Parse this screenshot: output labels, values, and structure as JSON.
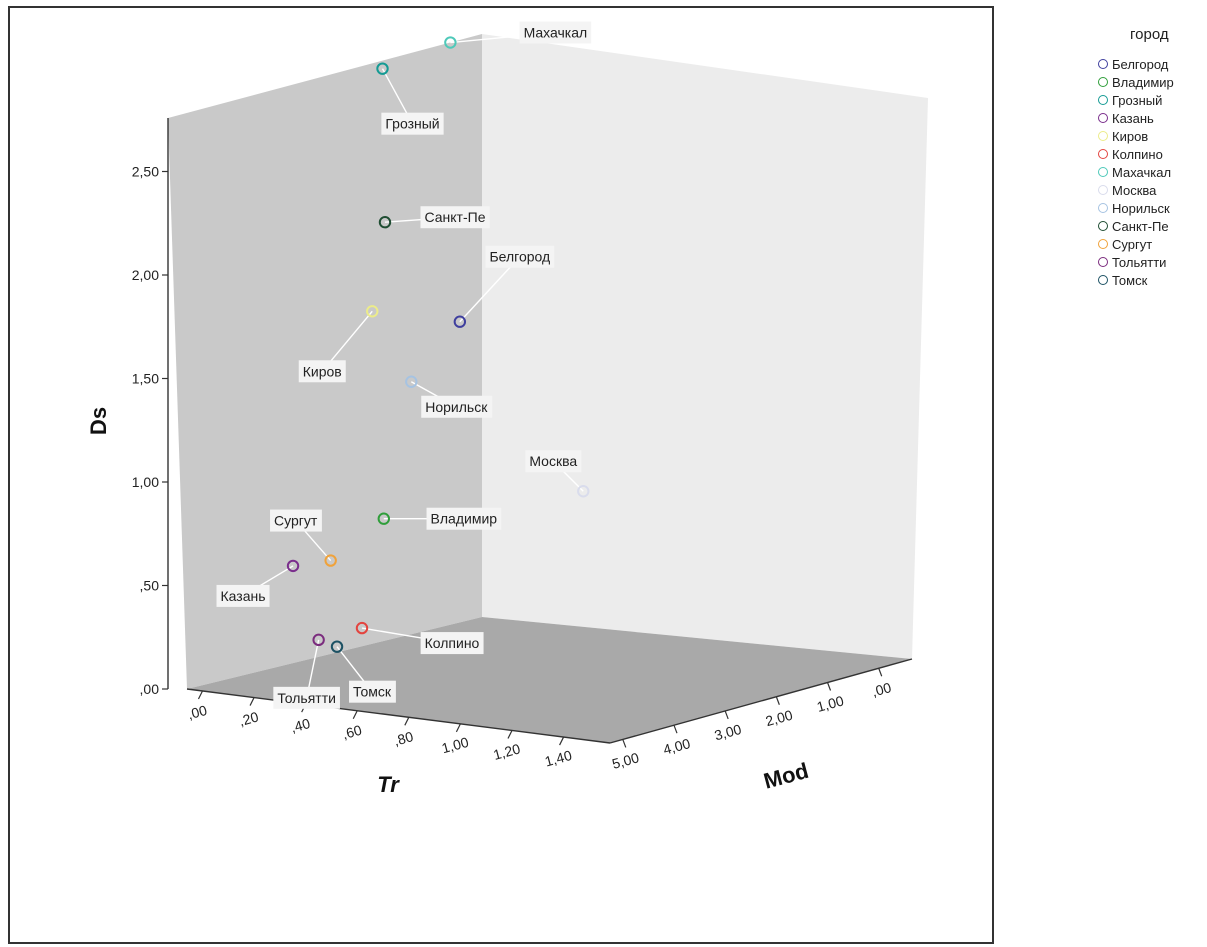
{
  "chart_data": {
    "type": "scatter",
    "subtype": "3d-scatter",
    "legend_title": "город",
    "legend_placement": "right",
    "axes": {
      "x": {
        "label": "Tr",
        "ticks": [
          ",00",
          ",20",
          ",40",
          ",60",
          ",80",
          "1,00",
          "1,20",
          "1,40"
        ],
        "range": [
          0,
          1.5
        ]
      },
      "y": {
        "label": "Mod",
        "ticks": [
          "5,00",
          "4,00",
          "3,00",
          "2,00",
          "1,00",
          ",00"
        ],
        "range": [
          0,
          5
        ]
      },
      "z": {
        "label": "Ds",
        "ticks": [
          ",00",
          ",50",
          "1,00",
          "1,50",
          "2,00",
          "2,50"
        ],
        "range": [
          0,
          2.75
        ]
      }
    },
    "series": [
      {
        "name": "Белгород",
        "color": "#3f3f9e",
        "tr": 1.45,
        "mod": 2.7,
        "ds": 1.85
      },
      {
        "name": "Владимир",
        "color": "#2f9e3a",
        "tr": 1.2,
        "mod": 3.7,
        "ds": 0.9
      },
      {
        "name": "Грозный",
        "color": "#159b94",
        "tr": 0.3,
        "mod": 2.3,
        "ds": 2.75
      },
      {
        "name": "Казань",
        "color": "#7a2e8c",
        "tr": 0.4,
        "mod": 4.1,
        "ds": 0.5
      },
      {
        "name": "Киров",
        "color": "#ecec8a",
        "tr": 0.75,
        "mod": 3.2,
        "ds": 1.75
      },
      {
        "name": "Колпино",
        "color": "#e3443f",
        "tr": 1.2,
        "mod": 4.1,
        "ds": 0.4
      },
      {
        "name": "Махачкал",
        "color": "#4ec9b9",
        "tr": 0.55,
        "mod": 1.45,
        "ds": 2.9
      },
      {
        "name": "Москва",
        "color": "#d9dcec",
        "tr": 0.1,
        "mod": -1.7,
        "ds": 0.55
      },
      {
        "name": "Норильск",
        "color": "#a6c3e2",
        "tr": 0.95,
        "mod": 2.8,
        "ds": 1.45
      },
      {
        "name": "Санкт-Пе",
        "color": "#1f4d32",
        "tr": 0.55,
        "mod": 2.65,
        "ds": 2.1
      },
      {
        "name": "Сургут",
        "color": "#f0a23a",
        "tr": 0.9,
        "mod": 4.2,
        "ds": 0.65
      },
      {
        "name": "Тольятти",
        "color": "#7b2c7e",
        "tr": 0.95,
        "mod": 4.5,
        "ds": 0.3
      },
      {
        "name": "Томск",
        "color": "#1d5264",
        "tr": 1.1,
        "mod": 4.4,
        "ds": 0.3
      }
    ]
  }
}
